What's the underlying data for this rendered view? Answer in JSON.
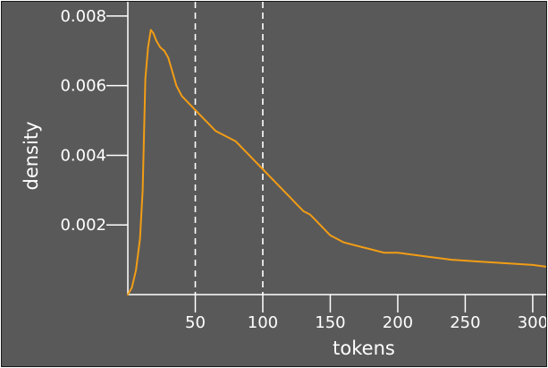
{
  "chart_data": {
    "type": "line",
    "xlabel": "tokens",
    "ylabel": "density",
    "xlim": [
      0,
      310
    ],
    "ylim": [
      0,
      0.0081
    ],
    "x_ticks": [
      50,
      100,
      150,
      200,
      250,
      300
    ],
    "x_tick_labels": [
      "50",
      "100",
      "150",
      "200",
      "250",
      "300"
    ],
    "y_ticks": [
      0.002,
      0.004,
      0.006,
      0.008
    ],
    "y_tick_labels": [
      "0.002",
      "0.004",
      "0.006",
      "0.008"
    ],
    "vertical_reference_lines": [
      50,
      100
    ],
    "grid": false,
    "colors": {
      "background": "#595959",
      "series": "#f29d15",
      "axis": "#ffffff",
      "reference_line": "#ffffff"
    },
    "series": [
      {
        "x": [
          0,
          3,
          6,
          9,
          11,
          12,
          13,
          15,
          17,
          19,
          21,
          24,
          27,
          30,
          33,
          36,
          40,
          45,
          50,
          55,
          60,
          65,
          70,
          75,
          80,
          85,
          90,
          95,
          100,
          105,
          110,
          115,
          120,
          125,
          130,
          135,
          140,
          145,
          150,
          155,
          160,
          170,
          180,
          190,
          200,
          220,
          240,
          260,
          280,
          300,
          310
        ],
        "y": [
          0,
          0.0002,
          0.0007,
          0.0016,
          0.003,
          0.0046,
          0.0062,
          0.0071,
          0.0076,
          0.0075,
          0.0073,
          0.0071,
          0.007,
          0.0068,
          0.0064,
          0.006,
          0.0057,
          0.0055,
          0.0053,
          0.0051,
          0.0049,
          0.0047,
          0.0046,
          0.0045,
          0.0044,
          0.0042,
          0.004,
          0.0038,
          0.0036,
          0.0034,
          0.0032,
          0.003,
          0.0028,
          0.0026,
          0.0024,
          0.0023,
          0.0021,
          0.0019,
          0.0017,
          0.0016,
          0.0015,
          0.0014,
          0.0013,
          0.0012,
          0.0012,
          0.0011,
          0.001,
          0.00095,
          0.0009,
          0.00085,
          0.0008
        ]
      }
    ]
  }
}
